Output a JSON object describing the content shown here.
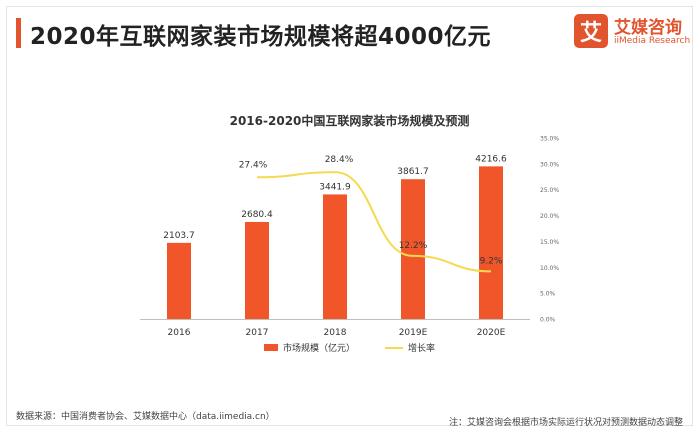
{
  "header": {
    "title": "2020年互联网家装市场规模将超4000亿元"
  },
  "logo": {
    "mark": "艾",
    "name": "艾媒咨询",
    "english": "iiMedia Research"
  },
  "colors": {
    "accent": "#e2542e",
    "bar": "#f1562b",
    "line": "#f5d94e"
  },
  "chart_data": {
    "type": "bar",
    "title": "2016-2020中国互联网家装市场规模及预测",
    "categories": [
      "2016",
      "2017",
      "2018",
      "2019E",
      "2020E"
    ],
    "series": [
      {
        "name": "市场规模（亿元）",
        "type": "bar",
        "axis": "left",
        "values": [
          2103.7,
          2680.4,
          3441.9,
          3861.7,
          4216.6
        ],
        "labels": [
          "2103.7",
          "2680.4",
          "3441.9",
          "3861.7",
          "4216.6"
        ]
      },
      {
        "name": "增长率",
        "type": "line",
        "axis": "right",
        "values": [
          null,
          27.4,
          28.4,
          12.2,
          9.2
        ],
        "labels": [
          "",
          "27.4%",
          "28.4%",
          "12.2%",
          "9.2%"
        ]
      }
    ],
    "y_right": {
      "ticks": [
        "35.0%",
        "30.0%",
        "25.0%",
        "20.0%",
        "15.0%",
        "10.0%",
        "5.0%",
        "0.0%"
      ],
      "lim": [
        0,
        35
      ]
    },
    "y_left_lim": [
      0,
      5000
    ],
    "legend_position": "bottom",
    "grid": false
  },
  "footer": {
    "source": "数据来源：中国消费者协会、艾媒数据中心（data.iimedia.cn）",
    "note": "注：艾媒咨询会根据市场实际运行状况对预测数据动态调整"
  }
}
